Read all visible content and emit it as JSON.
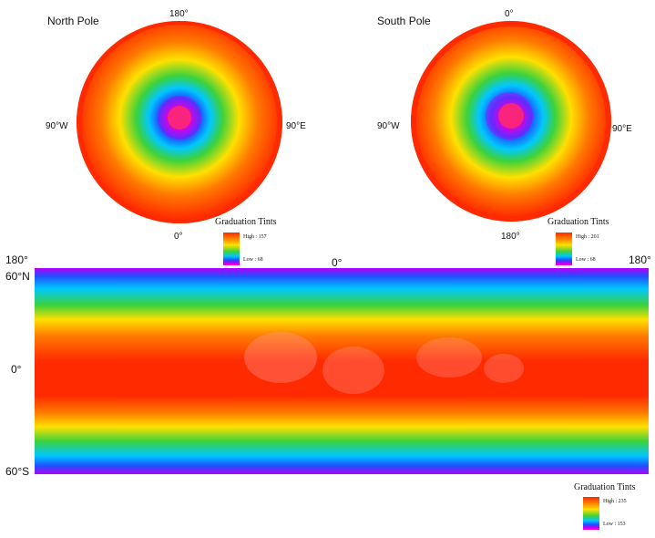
{
  "north": {
    "title": "North Pole",
    "top": "180°",
    "left": "90°W",
    "right": "90°E",
    "bottom": "0°",
    "legend": {
      "title": "Graduation Tints",
      "high": "High : 157",
      "low": "Low : 68"
    }
  },
  "south": {
    "title": "South Pole",
    "top": "0°",
    "left": "90°W",
    "right": "90°E",
    "bottom": "180°",
    "legend": {
      "title": "Graduation Tints",
      "high": "High : 201",
      "low": "Low : 68"
    }
  },
  "global": {
    "lon_left": "180°",
    "lon_center": "0°",
    "lon_right": "180°",
    "lat_top": "60°N",
    "lat_mid": "0°",
    "lat_bottom": "60°S",
    "legend": {
      "title": "Graduation Tints",
      "high": "High : 235",
      "low": "Low : 153"
    }
  },
  "colors": {
    "high": "#ff2a00",
    "orange": "#ff7a00",
    "yellow": "#ffe000",
    "green": "#3cd23c",
    "cyan": "#00c8ff",
    "blue": "#1e50ff",
    "purple": "#b400ff",
    "low": "#ff00c8"
  }
}
